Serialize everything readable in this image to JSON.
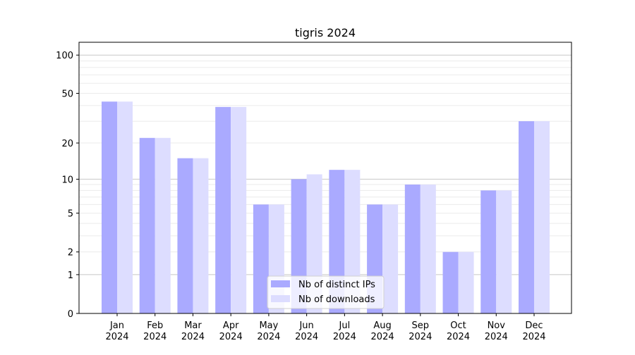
{
  "chart_data": {
    "type": "bar",
    "title": "tigris 2024",
    "xlabel": "",
    "ylabel": "",
    "yscale": "log(1+x)",
    "ylim": [
      0,
      126
    ],
    "yticks": [
      0,
      1,
      2,
      5,
      10,
      20,
      50,
      100
    ],
    "grid": true,
    "legend_placement": "lower-center",
    "categories": [
      "Jan\n2024",
      "Feb\n2024",
      "Mar\n2024",
      "Apr\n2024",
      "May\n2024",
      "Jun\n2024",
      "Jul\n2024",
      "Aug\n2024",
      "Sep\n2024",
      "Oct\n2024",
      "Nov\n2024",
      "Dec\n2024"
    ],
    "series": [
      {
        "name": "Nb of distinct IPs",
        "color": "#aaaaff",
        "values": [
          43,
          22,
          15,
          39,
          6,
          10,
          12,
          6,
          9,
          2,
          8,
          30
        ]
      },
      {
        "name": "Nb of downloads",
        "color": "#ddddff",
        "values": [
          43,
          22,
          15,
          39,
          6,
          11,
          12,
          6,
          9,
          2,
          8,
          30
        ]
      }
    ]
  }
}
